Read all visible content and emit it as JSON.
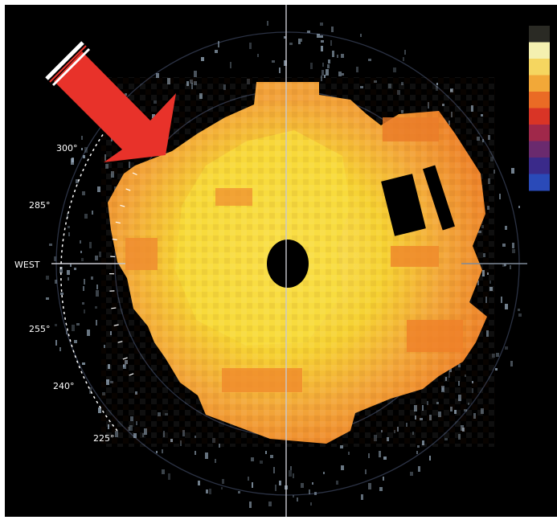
{
  "radar": {
    "bearing_labels": {
      "b300": "300°",
      "b285": "285°",
      "west": "WEST",
      "b255": "255°",
      "b240": "240°",
      "b225": "225°"
    },
    "colors": {
      "background": "#000000",
      "echo_core": "#f6d233",
      "echo_mid": "#f3a83a",
      "echo_edge": "#ec7a26",
      "arrow": "#e8322a",
      "grid": "#c8c8d0"
    },
    "colorbar_colors": [
      "#2a2a24",
      "#f4f0b0",
      "#f5d660",
      "#f2a838",
      "#ea6b25",
      "#d93426",
      "#a0284a",
      "#6a2a6e",
      "#3a2a8a",
      "#2a4ab8"
    ],
    "annotation": {
      "icon": "arrow-pointer-icon"
    }
  }
}
